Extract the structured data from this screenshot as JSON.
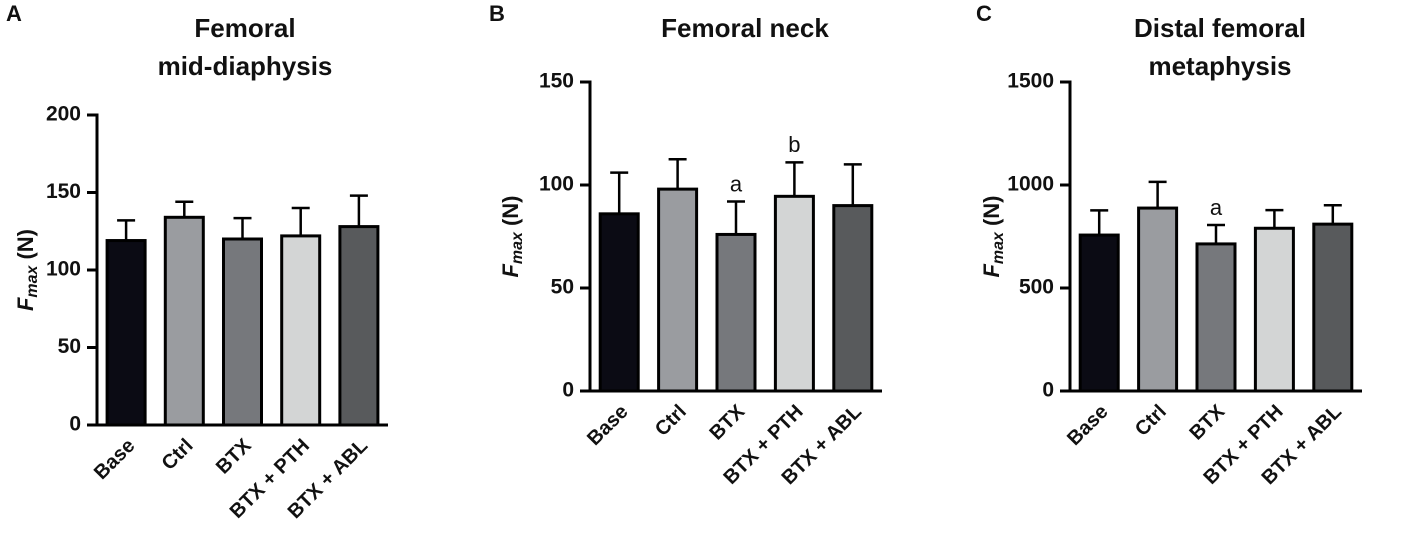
{
  "chart_data": [
    {
      "type": "bar",
      "panel": "A",
      "title": [
        "Femoral",
        "mid-diaphysis"
      ],
      "ylabel": {
        "symbol": "F",
        "subscript": "max",
        "unit": "(N)"
      },
      "categories": [
        "Base",
        "Ctrl",
        "BTX",
        "BTX + PTH",
        "BTX + ABL"
      ],
      "values": [
        119,
        134,
        120,
        122,
        128
      ],
      "errors": [
        13,
        10,
        13.5,
        18,
        20
      ],
      "annotations": [
        null,
        null,
        null,
        null,
        null
      ],
      "colors": [
        "#0b0b14",
        "#9a9ca0",
        "#76787c",
        "#d3d5d5",
        "#585a5c"
      ],
      "ylim": [
        0,
        200
      ],
      "yticks": [
        0,
        50,
        100,
        150,
        200
      ]
    },
    {
      "type": "bar",
      "panel": "B",
      "title": [
        "Femoral neck"
      ],
      "ylabel": {
        "symbol": "F",
        "subscript": "max",
        "unit": "(N)"
      },
      "categories": [
        "Base",
        "Ctrl",
        "BTX",
        "BTX + PTH",
        "BTX + ABL"
      ],
      "values": [
        86,
        98,
        76,
        94.5,
        90
      ],
      "errors": [
        20,
        14.5,
        16,
        16.5,
        20
      ],
      "annotations": [
        null,
        null,
        "a",
        "b",
        null
      ],
      "colors": [
        "#0b0b14",
        "#9a9ca0",
        "#76787c",
        "#d3d5d5",
        "#585a5c"
      ],
      "ylim": [
        0,
        150
      ],
      "yticks": [
        0,
        50,
        100,
        150
      ]
    },
    {
      "type": "bar",
      "panel": "C",
      "title": [
        "Distal femoral",
        "metaphysis"
      ],
      "ylabel": {
        "symbol": "F",
        "subscript": "max",
        "unit": "(N)"
      },
      "categories": [
        "Base",
        "Ctrl",
        "BTX",
        "BTX + PTH",
        "BTX + ABL"
      ],
      "values": [
        757,
        888,
        714,
        790,
        810
      ],
      "errors": [
        120,
        127,
        92,
        88,
        92
      ],
      "annotations": [
        null,
        null,
        "a",
        null,
        null
      ],
      "colors": [
        "#0b0b14",
        "#9a9ca0",
        "#76787c",
        "#d3d5d5",
        "#585a5c"
      ],
      "ylim": [
        0,
        1500
      ],
      "yticks": [
        0,
        500,
        1000,
        1500
      ]
    }
  ]
}
